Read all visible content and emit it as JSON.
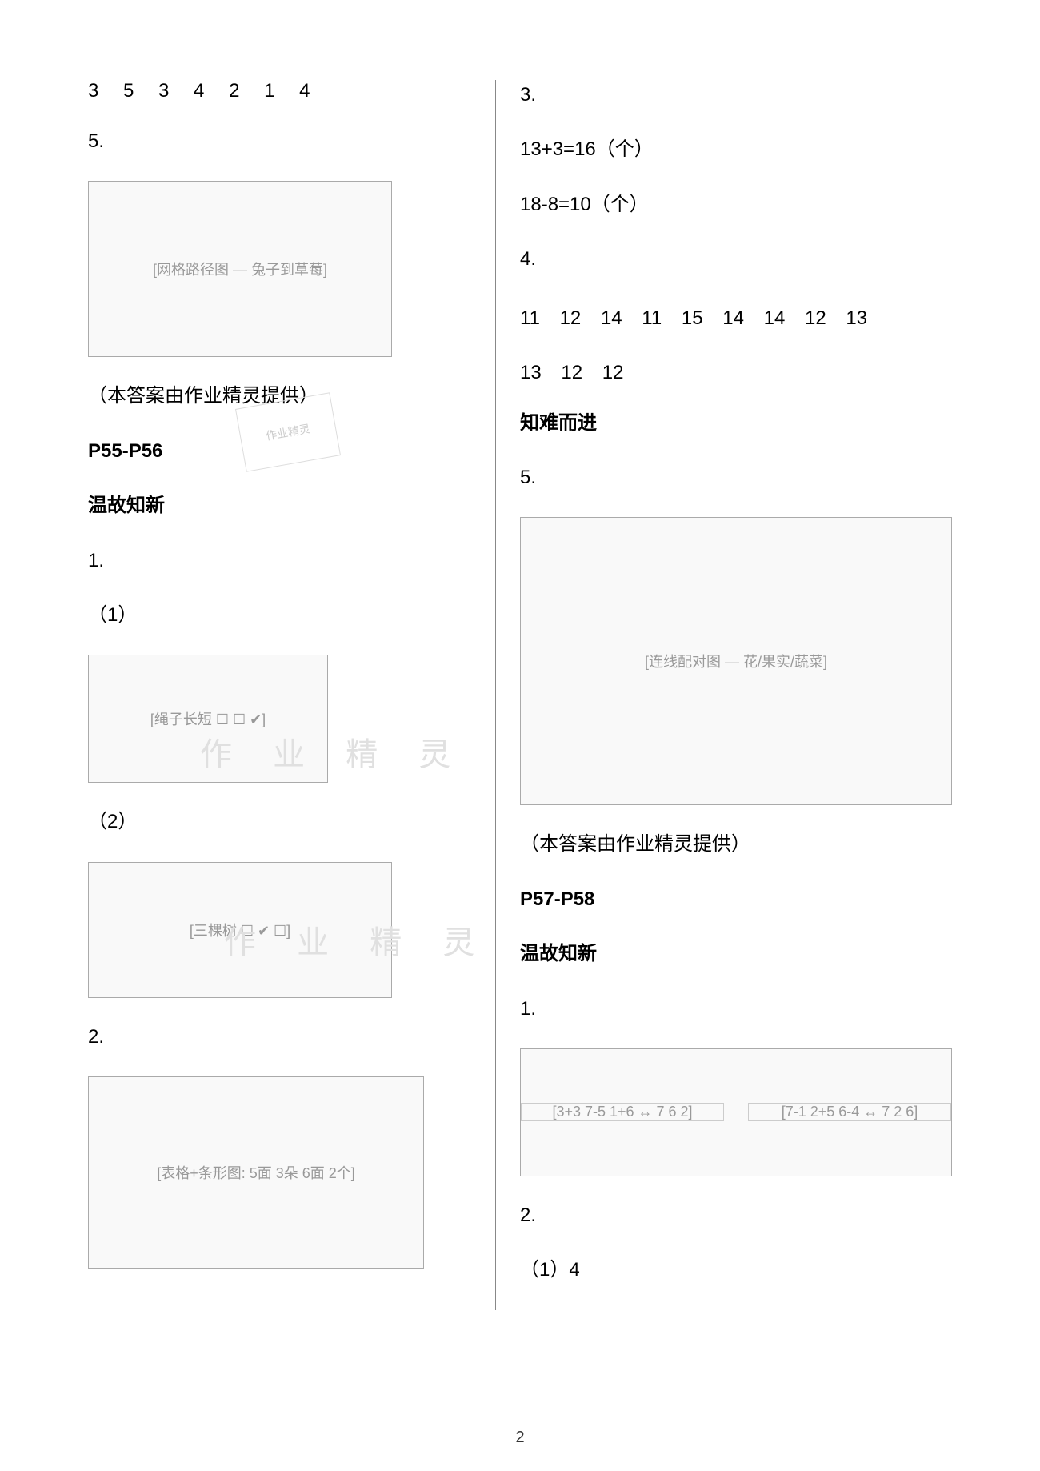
{
  "left": {
    "row1": "3  5  3  4  2  1  4",
    "q5": "5.",
    "img_grid_label": "[网格路径图 — 兔子到草莓]",
    "credit": "（本答案由作业精灵提供）",
    "p_range": "P55-P56",
    "heading1": "温故知新",
    "q1": "1.",
    "sub1": "（1）",
    "img_ropes_label": "[绳子长短 ☐ ☐ ✔]",
    "sub2": "（2）",
    "img_trees_label": "[三棵树 ☐ ✔ ☐]",
    "q2": "2.",
    "img_table_label": "[表格+条形图: 5面 3朵 6面 2个]"
  },
  "right": {
    "q3": "3.",
    "eq1": "13+3=16（个）",
    "eq2": "18-8=10（个）",
    "q4": "4.",
    "nums1": "11 12 14 11 15 14 14 12 13",
    "nums2": "13 12 12",
    "heading2": "知难而进",
    "q5": "5.",
    "img_match_label": "[连线配对图 — 花/果实/蔬菜]",
    "credit": "（本答案由作业精灵提供）",
    "p_range": "P57-P58",
    "heading3": "温故知新",
    "q1": "1.",
    "img_lines_left": "[3+3 7-5 1+6 ↔ 7 6 2]",
    "img_lines_right": "[7-1 2+5 6-4 ↔ 7 2 6]",
    "q2": "2.",
    "sub1_4": "（1）4"
  },
  "watermark_text": "作 业 精 灵",
  "stamp_text": "作业精灵",
  "page_number": "2"
}
